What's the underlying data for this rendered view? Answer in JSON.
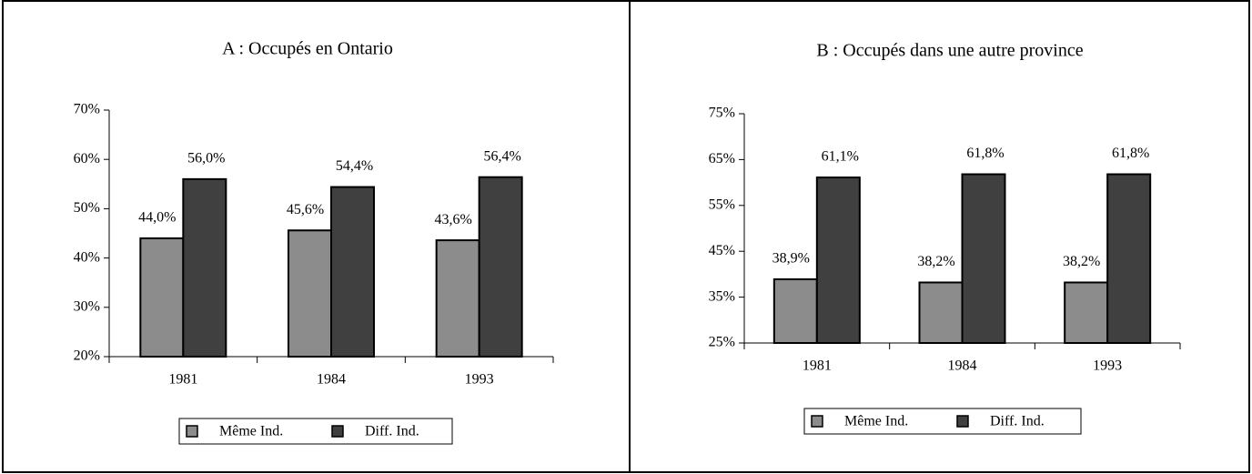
{
  "chart_data": [
    {
      "type": "bar",
      "title": "A : Occupés en Ontario",
      "categories": [
        "1981",
        "1984",
        "1993"
      ],
      "series": [
        {
          "name": "Même Ind.",
          "color": "#8c8c8c",
          "values": [
            44.0,
            45.6,
            43.6
          ],
          "value_labels": [
            "44,0%",
            "45,6%",
            "43,6%"
          ]
        },
        {
          "name": "Diff. Ind.",
          "color": "#404040",
          "values": [
            56.0,
            54.4,
            56.4
          ],
          "value_labels": [
            "56,0%",
            "54,4%",
            "56,4%"
          ]
        }
      ],
      "ylim": [
        20,
        70
      ],
      "yticks": [
        {
          "value": 20,
          "label": "20%"
        },
        {
          "value": 30,
          "label": "30%"
        },
        {
          "value": 40,
          "label": "40%"
        },
        {
          "value": 50,
          "label": "50%"
        },
        {
          "value": 60,
          "label": "60%"
        },
        {
          "value": 70,
          "label": "70%"
        }
      ],
      "legend": "bottom"
    },
    {
      "type": "bar",
      "title": "B : Occupés dans une autre province",
      "categories": [
        "1981",
        "1984",
        "1993"
      ],
      "series": [
        {
          "name": "Même Ind.",
          "color": "#8c8c8c",
          "values": [
            38.9,
            38.2,
            38.2
          ],
          "value_labels": [
            "38,9%",
            "38,2%",
            "38,2%"
          ]
        },
        {
          "name": "Diff. Ind.",
          "color": "#404040",
          "values": [
            61.1,
            61.8,
            61.8
          ],
          "value_labels": [
            "61,1%",
            "61,8%",
            "61,8%"
          ]
        }
      ],
      "ylim": [
        25,
        75
      ],
      "yticks": [
        {
          "value": 25,
          "label": "25%"
        },
        {
          "value": 35,
          "label": "35%"
        },
        {
          "value": 45,
          "label": "45%"
        },
        {
          "value": 55,
          "label": "55%"
        },
        {
          "value": 65,
          "label": "65%"
        },
        {
          "value": 75,
          "label": "75%"
        }
      ],
      "legend": "bottom"
    }
  ]
}
